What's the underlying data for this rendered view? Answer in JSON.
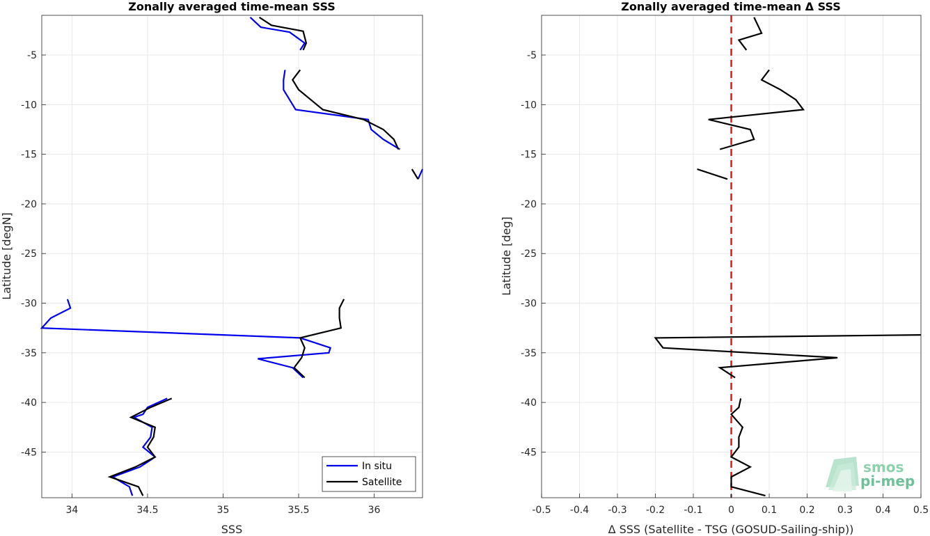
{
  "chart_data": [
    {
      "type": "line",
      "title": "Zonally averaged time-mean SSS",
      "xlabel": "SSS",
      "ylabel": "Latitude [degN]",
      "xlim": [
        33.8,
        36.32
      ],
      "ylim": [
        -49.6,
        -1.0
      ],
      "xticks": [
        34,
        34.5,
        35,
        35.5,
        36
      ],
      "xtick_labels": [
        "34",
        "34.5",
        "35",
        "35.5",
        "36"
      ],
      "yticks": [
        -45,
        -40,
        -35,
        -30,
        -25,
        -20,
        -15,
        -10,
        -5
      ],
      "ytick_labels": [
        "-45",
        "-40",
        "-35",
        "-30",
        "-25",
        "-20",
        "-15",
        "-10",
        "-5"
      ],
      "grid": true,
      "legend_position": "bottom-right",
      "series": [
        {
          "name": "In situ",
          "color": "#0000ee",
          "segments": [
            [
              [
                35.18,
                -1.2
              ],
              [
                35.25,
                -2.2
              ],
              [
                35.44,
                -2.7
              ],
              [
                35.54,
                -3.8
              ],
              [
                35.51,
                -4.5
              ]
            ],
            [
              [
                35.41,
                -6.5
              ],
              [
                35.4,
                -7.5
              ],
              [
                35.4,
                -8.5
              ],
              [
                35.44,
                -9.5
              ],
              [
                35.48,
                -10.5
              ],
              [
                35.96,
                -11.5
              ],
              [
                35.98,
                -12.5
              ],
              [
                36.06,
                -13.5
              ],
              [
                36.17,
                -14.5
              ]
            ],
            [
              [
                36.32,
                -16.5
              ],
              [
                36.29,
                -17.5
              ]
            ],
            [
              [
                33.97,
                -29.6
              ],
              [
                33.99,
                -30.5
              ],
              [
                33.86,
                -31.5
              ],
              [
                33.8,
                -32.5
              ],
              [
                35.51,
                -33.5
              ],
              [
                35.71,
                -34.5
              ],
              [
                35.7,
                -35.0
              ],
              [
                35.23,
                -35.6
              ],
              [
                35.46,
                -36.5
              ],
              [
                35.53,
                -37.5
              ]
            ],
            [
              [
                34.63,
                -39.6
              ],
              [
                34.5,
                -40.5
              ],
              [
                34.47,
                -41.2
              ],
              [
                34.41,
                -41.5
              ],
              [
                34.53,
                -42.5
              ],
              [
                34.52,
                -43.5
              ],
              [
                34.47,
                -44.5
              ],
              [
                34.55,
                -45.5
              ],
              [
                34.45,
                -46.5
              ],
              [
                34.27,
                -47.5
              ],
              [
                34.38,
                -48.5
              ],
              [
                34.4,
                -49.4
              ]
            ]
          ]
        },
        {
          "name": "Satellite",
          "color": "#000000",
          "segments": [
            [
              [
                35.24,
                -1.2
              ],
              [
                35.32,
                -2.0
              ],
              [
                35.53,
                -2.6
              ],
              [
                35.55,
                -3.8
              ],
              [
                35.53,
                -4.5
              ]
            ],
            [
              [
                35.51,
                -6.5
              ],
              [
                35.46,
                -7.5
              ],
              [
                35.5,
                -8.5
              ],
              [
                35.58,
                -9.5
              ],
              [
                35.66,
                -10.5
              ],
              [
                35.93,
                -11.5
              ],
              [
                36.06,
                -12.5
              ],
              [
                36.13,
                -13.5
              ],
              [
                36.16,
                -14.5
              ]
            ],
            [
              [
                36.25,
                -16.5
              ],
              [
                36.29,
                -17.5
              ]
            ],
            [
              [
                35.8,
                -29.6
              ],
              [
                35.77,
                -30.5
              ],
              [
                35.77,
                -31.5
              ],
              [
                35.78,
                -32.5
              ],
              [
                35.51,
                -33.5
              ],
              [
                35.54,
                -34.5
              ],
              [
                35.52,
                -35.5
              ],
              [
                35.47,
                -36.5
              ],
              [
                35.54,
                -37.5
              ]
            ],
            [
              [
                34.66,
                -39.6
              ],
              [
                34.52,
                -40.5
              ],
              [
                34.39,
                -41.5
              ],
              [
                34.55,
                -42.5
              ],
              [
                34.54,
                -43.5
              ],
              [
                34.5,
                -44.5
              ],
              [
                34.55,
                -45.5
              ],
              [
                34.42,
                -46.5
              ],
              [
                34.25,
                -47.5
              ],
              [
                34.44,
                -48.5
              ],
              [
                34.47,
                -49.4
              ]
            ]
          ]
        }
      ]
    },
    {
      "type": "line",
      "title": "Zonally averaged time-mean Δ SSS",
      "xlabel": "Δ SSS (Satellite - TSG (GOSUD-Sailing-ship))",
      "ylabel": "Latitude [deg]",
      "xlim": [
        -0.5,
        0.5
      ],
      "ylim": [
        -49.6,
        -1.0
      ],
      "xticks": [
        -0.5,
        -0.4,
        -0.3,
        -0.2,
        -0.1,
        0,
        0.1,
        0.2,
        0.3,
        0.4,
        0.5
      ],
      "xtick_labels": [
        "-0.5",
        "-0.4",
        "-0.3",
        "-0.2",
        "-0.1",
        "0",
        "0.1",
        "0.2",
        "0.3",
        "0.4",
        "0.5"
      ],
      "yticks": [
        -45,
        -40,
        -35,
        -30,
        -25,
        -20,
        -15,
        -10,
        -5
      ],
      "ytick_labels": [
        "-45",
        "-40",
        "-35",
        "-30",
        "-25",
        "-20",
        "-15",
        "-10",
        "-5"
      ],
      "grid": true,
      "reference_line": {
        "x": 0,
        "color": "#dd1111",
        "style": "dashed"
      },
      "series": [
        {
          "color": "#000000",
          "segments": [
            [
              [
                0.06,
                -1.2
              ],
              [
                0.07,
                -2.0
              ],
              [
                0.08,
                -2.8
              ],
              [
                0.02,
                -3.5
              ],
              [
                0.04,
                -4.5
              ]
            ],
            [
              [
                0.1,
                -6.5
              ],
              [
                0.08,
                -7.5
              ],
              [
                0.13,
                -8.5
              ],
              [
                0.17,
                -9.5
              ],
              [
                0.19,
                -10.5
              ],
              [
                -0.06,
                -11.5
              ],
              [
                0.05,
                -12.5
              ],
              [
                0.06,
                -13.5
              ],
              [
                -0.03,
                -14.5
              ]
            ],
            [
              [
                -0.09,
                -16.5
              ],
              [
                -0.01,
                -17.5
              ]
            ],
            [
              [
                0.5,
                -33.2
              ],
              [
                -0.2,
                -33.5
              ],
              [
                -0.18,
                -34.5
              ],
              [
                0.28,
                -35.5
              ],
              [
                -0.03,
                -36.5
              ],
              [
                0.01,
                -37.5
              ]
            ],
            [
              [
                0.025,
                -39.6
              ],
              [
                0.02,
                -40.5
              ],
              [
                0.0,
                -41.2
              ],
              [
                0.03,
                -42.5
              ],
              [
                0.02,
                -43.5
              ],
              [
                0.02,
                -44.5
              ],
              [
                0.0,
                -45.5
              ],
              [
                0.05,
                -46.5
              ],
              [
                0.0,
                -47.5
              ],
              [
                0.0,
                -48.5
              ],
              [
                0.09,
                -49.4
              ]
            ]
          ]
        }
      ]
    }
  ],
  "legend": {
    "items": [
      {
        "label": "In situ",
        "color": "#0000ee"
      },
      {
        "label": "Satellite",
        "color": "#000000"
      }
    ]
  },
  "logo": {
    "line1": "smos",
    "line2": "pi-mep"
  }
}
